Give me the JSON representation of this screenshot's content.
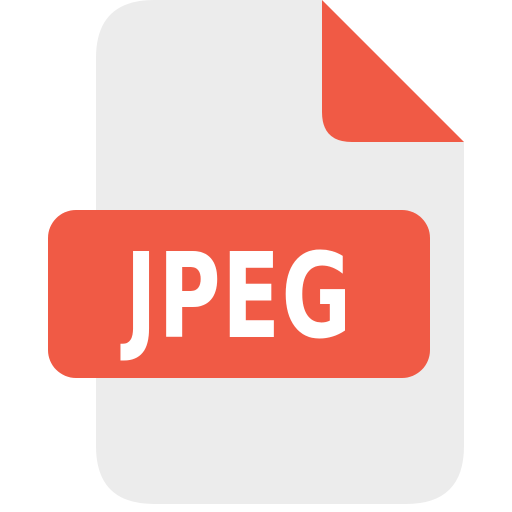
{
  "icon": {
    "name": "jpeg-file-icon",
    "label": "JPEG",
    "colors": {
      "page": "#ececec",
      "fold": "#f05a45",
      "badge": "#f05a45",
      "text": "#ffffff"
    }
  }
}
